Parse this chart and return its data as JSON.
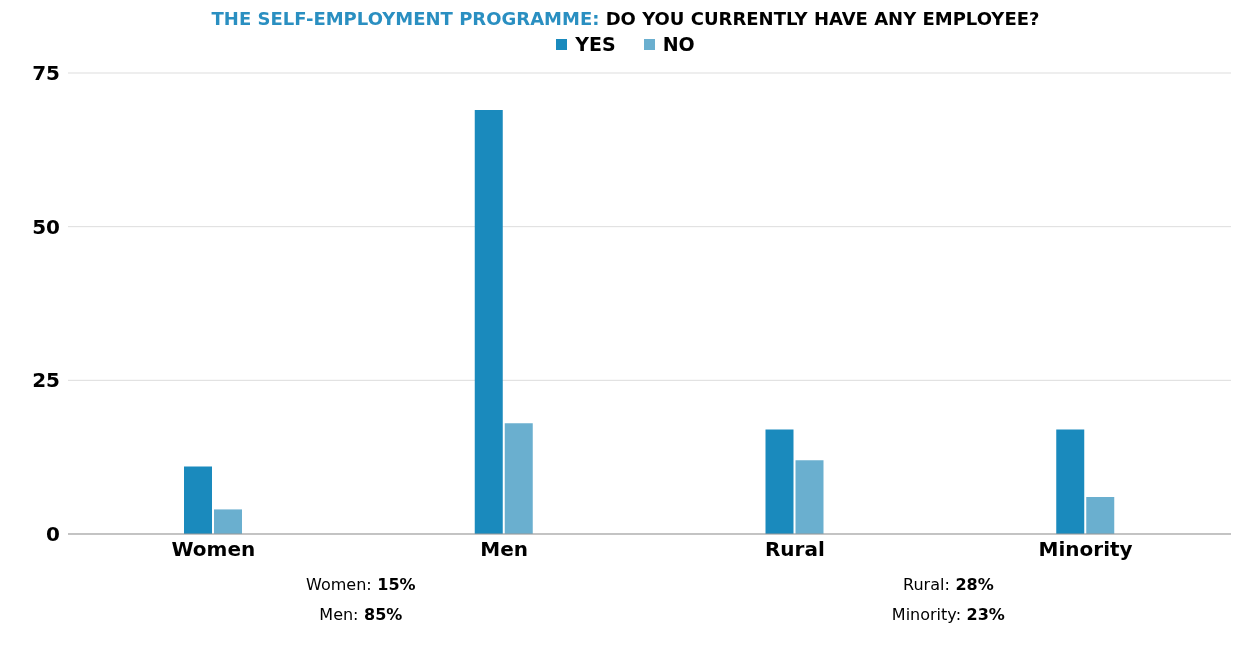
{
  "chart_data": {
    "type": "bar",
    "title": "THE SELF-EMPLOYMENT PROGRAMME: DO YOU CURRENTLY HAVE ANY EMPLOYEE?",
    "categories": [
      "Women",
      "Men",
      "Rural",
      "Minority"
    ],
    "series": [
      {
        "name": "YES",
        "color": "#1a8abd",
        "values": [
          11,
          69,
          17,
          17
        ]
      },
      {
        "name": "NO",
        "color": "#6aafcf",
        "values": [
          4,
          18,
          12,
          6
        ]
      }
    ],
    "ylim": [
      0,
      75
    ],
    "yticks": [
      0,
      25,
      50,
      75
    ],
    "grid": "y",
    "legend": "top",
    "annotations": [
      "Women: 15%",
      "Men: 85%",
      "Rural: 28%",
      "Minority: 23%"
    ]
  }
}
